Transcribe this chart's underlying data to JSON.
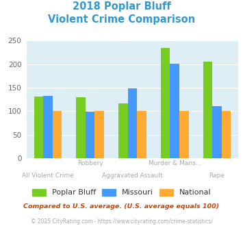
{
  "title_line1": "2018 Poplar Bluff",
  "title_line2": "Violent Crime Comparison",
  "title_color": "#3399cc",
  "categories": [
    "All Violent Crime",
    "Robbery",
    "Aggravated Assault",
    "Murder & Mans...",
    "Rape"
  ],
  "label_row1": {
    "1": "Robbery",
    "3": "Murder & Mans..."
  },
  "label_row2": {
    "0": "All Violent Crime",
    "2": "Aggravated Assault",
    "4": "Rape"
  },
  "poplar_bluff": [
    131,
    129,
    116,
    235,
    206
  ],
  "missouri": [
    133,
    99,
    148,
    201,
    111
  ],
  "national": [
    100,
    100,
    100,
    100,
    100
  ],
  "color_poplar": "#77cc22",
  "color_missouri": "#4499ff",
  "color_national": "#ffaa33",
  "bg_color": "#ddeef4",
  "ylim": [
    0,
    250
  ],
  "yticks": [
    0,
    50,
    100,
    150,
    200,
    250
  ],
  "legend_labels": [
    "Poplar Bluff",
    "Missouri",
    "National"
  ],
  "footnote1": "Compared to U.S. average. (U.S. average equals 100)",
  "footnote2": "© 2025 CityRating.com - https://www.cityrating.com/crime-statistics/",
  "footnote1_color": "#cc4400",
  "footnote2_color": "#aaaaaa",
  "label_color": "#aaaaaa"
}
